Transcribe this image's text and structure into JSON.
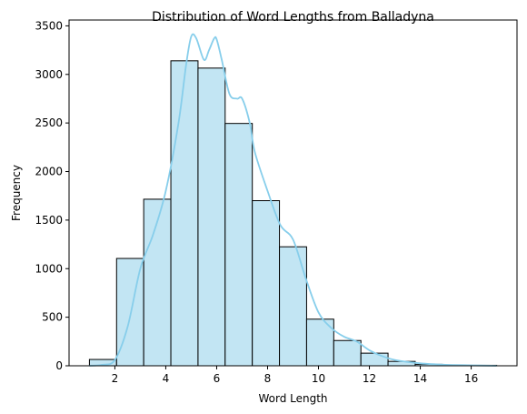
{
  "chart_data": {
    "type": "bar",
    "title": "Distribution of Word Lengths from Balladyna",
    "xlabel": "Word Length",
    "ylabel": "Frequency",
    "xlim": [
      0.2,
      17.8
    ],
    "ylim": [
      0,
      3560
    ],
    "xticks": [
      2,
      4,
      6,
      8,
      10,
      12,
      14,
      16
    ],
    "yticks": [
      0,
      500,
      1000,
      1500,
      2000,
      2500,
      3000,
      3500
    ],
    "grid": false,
    "bar_fill": "#c2e5f3",
    "bar_edge": "#000000",
    "kde_color": "#87ceeb",
    "bins": [
      {
        "x0": 1.0,
        "x1": 2.067,
        "value": 65
      },
      {
        "x0": 2.067,
        "x1": 3.133,
        "value": 1105
      },
      {
        "x0": 3.133,
        "x1": 4.2,
        "value": 1715
      },
      {
        "x0": 4.2,
        "x1": 5.267,
        "value": 3140
      },
      {
        "x0": 5.267,
        "x1": 6.333,
        "value": 3065
      },
      {
        "x0": 6.333,
        "x1": 7.4,
        "value": 2495
      },
      {
        "x0": 7.4,
        "x1": 8.467,
        "value": 1700
      },
      {
        "x0": 8.467,
        "x1": 9.533,
        "value": 1225
      },
      {
        "x0": 9.533,
        "x1": 10.6,
        "value": 480
      },
      {
        "x0": 10.6,
        "x1": 11.667,
        "value": 260
      },
      {
        "x0": 11.667,
        "x1": 12.733,
        "value": 130
      },
      {
        "x0": 12.733,
        "x1": 13.8,
        "value": 45
      },
      {
        "x0": 13.8,
        "x1": 14.867,
        "value": 15
      },
      {
        "x0": 14.867,
        "x1": 15.933,
        "value": 5
      },
      {
        "x0": 15.933,
        "x1": 17.0,
        "value": 5
      }
    ],
    "kde": {
      "x": [
        1.0,
        1.5,
        2.0,
        2.5,
        3.0,
        3.5,
        4.0,
        4.5,
        4.8,
        5.0,
        5.2,
        5.5,
        5.7,
        5.9,
        6.0,
        6.2,
        6.5,
        6.8,
        7.0,
        7.3,
        7.5,
        8.0,
        8.5,
        9.0,
        9.5,
        10.0,
        10.5,
        11.0,
        11.5,
        12.0,
        12.5,
        13.0,
        14.0,
        15.0,
        16.0,
        17.0
      ],
      "y": [
        0,
        10,
        60,
        400,
        1000,
        1350,
        1800,
        2500,
        3100,
        3390,
        3370,
        3150,
        3250,
        3370,
        3360,
        3150,
        2800,
        2750,
        2750,
        2500,
        2200,
        1800,
        1450,
        1300,
        900,
        550,
        390,
        300,
        250,
        160,
        100,
        60,
        25,
        10,
        5,
        0
      ]
    }
  }
}
